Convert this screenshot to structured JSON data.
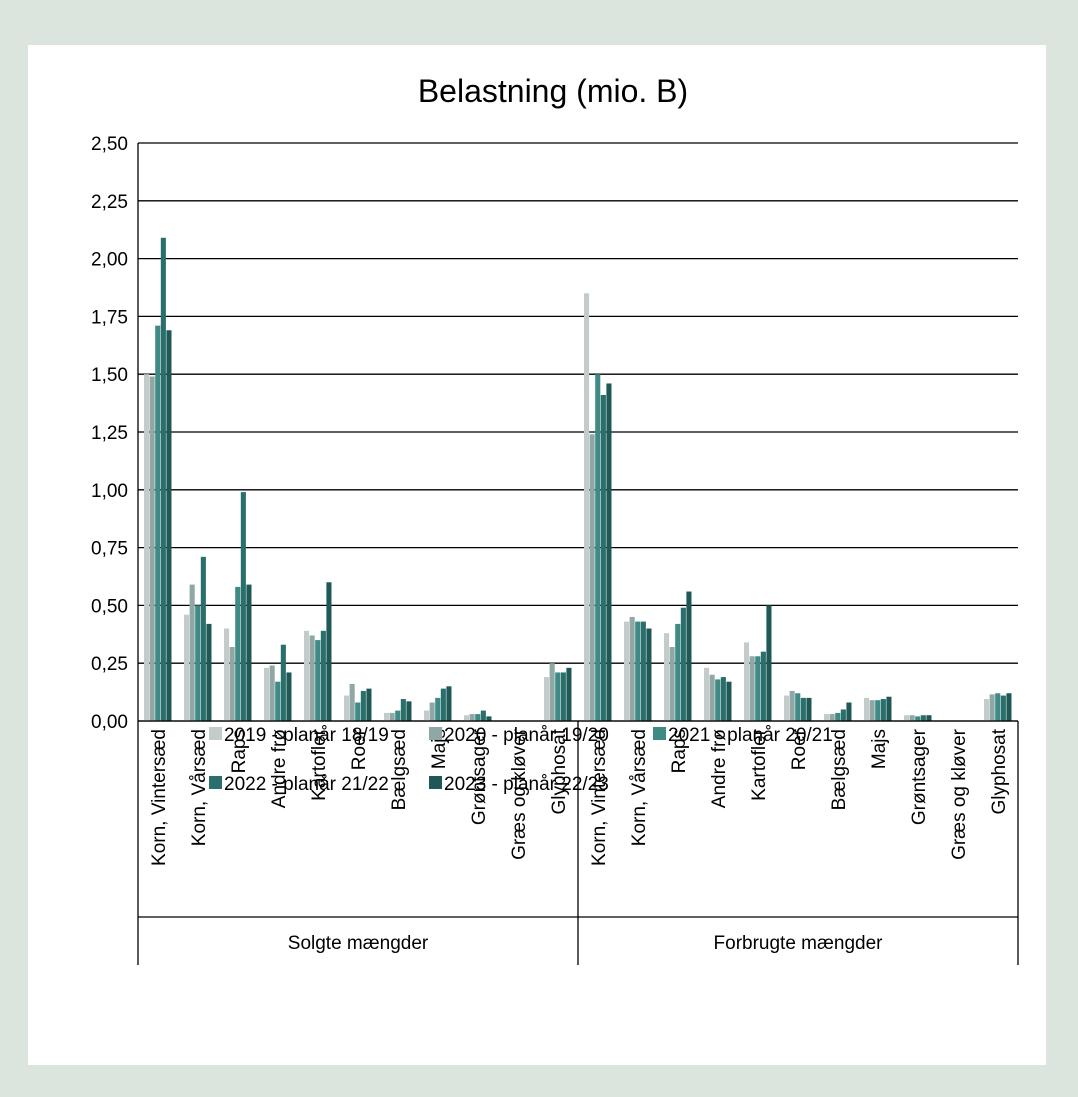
{
  "chart_data": {
    "type": "bar",
    "title": "Belastning (mio. B)",
    "ylim": [
      0,
      2.5
    ],
    "yticks": [
      "0,00",
      "0,25",
      "0,50",
      "0,75",
      "1,00",
      "1,25",
      "1,50",
      "1,75",
      "2,00",
      "2,25",
      "2,50"
    ],
    "grid": true,
    "legend_position": "bottom",
    "groups": [
      {
        "label": "Solgte mængder",
        "categories": [
          "Korn, Vintersæd",
          "Korn, Vårsæd",
          "Raps",
          "Andre frø",
          "Kartofler",
          "Roer",
          "Bælgsæd",
          "Majs",
          "Grøntsager",
          "Græs og kløver",
          "Glyphosat"
        ]
      },
      {
        "label": "Forbrugte mængder",
        "categories": [
          "Korn, Vintersæd",
          "Korn, Vårsæd",
          "Raps",
          "Andre frø",
          "Kartofler",
          "Roer",
          "Bælgsæd",
          "Majs",
          "Grøntsager",
          "Græs og kløver",
          "Glyphosat"
        ]
      }
    ],
    "series": [
      {
        "name": "2019 - planår 18/19",
        "color": "#c3cccb",
        "values": [
          1.5,
          0.46,
          0.4,
          0.23,
          0.39,
          0.11,
          0.035,
          0.045,
          0.025,
          0.0,
          0.19,
          1.85,
          0.43,
          0.38,
          0.23,
          0.34,
          0.11,
          0.03,
          0.1,
          0.025,
          0.0,
          0.095
        ]
      },
      {
        "name": "2020 - planår 19/20",
        "color": "#8fa8a5",
        "values": [
          1.49,
          0.59,
          0.32,
          0.24,
          0.37,
          0.16,
          0.035,
          0.08,
          0.03,
          0.0,
          0.25,
          1.24,
          0.45,
          0.32,
          0.2,
          0.28,
          0.13,
          0.03,
          0.09,
          0.025,
          0.0,
          0.115
        ]
      },
      {
        "name": "2021 - planår 20/21",
        "color": "#3f8a85",
        "values": [
          1.71,
          0.5,
          0.58,
          0.17,
          0.35,
          0.08,
          0.045,
          0.1,
          0.03,
          0.0,
          0.21,
          1.5,
          0.43,
          0.42,
          0.18,
          0.28,
          0.12,
          0.035,
          0.09,
          0.02,
          0.0,
          0.12
        ]
      },
      {
        "name": "2022 - planår 21/22",
        "color": "#2a6f6b",
        "values": [
          2.09,
          0.71,
          0.99,
          0.33,
          0.39,
          0.13,
          0.095,
          0.14,
          0.045,
          0.0,
          0.21,
          1.41,
          0.43,
          0.49,
          0.19,
          0.3,
          0.1,
          0.05,
          0.095,
          0.025,
          0.0,
          0.11
        ]
      },
      {
        "name": "2023 - planår 22/23",
        "color": "#1f5957",
        "values": [
          1.69,
          0.42,
          0.59,
          0.21,
          0.6,
          0.14,
          0.085,
          0.15,
          0.02,
          0.0,
          0.23,
          1.46,
          0.4,
          0.56,
          0.17,
          0.5,
          0.1,
          0.08,
          0.105,
          0.025,
          0.0,
          0.12
        ]
      }
    ]
  }
}
